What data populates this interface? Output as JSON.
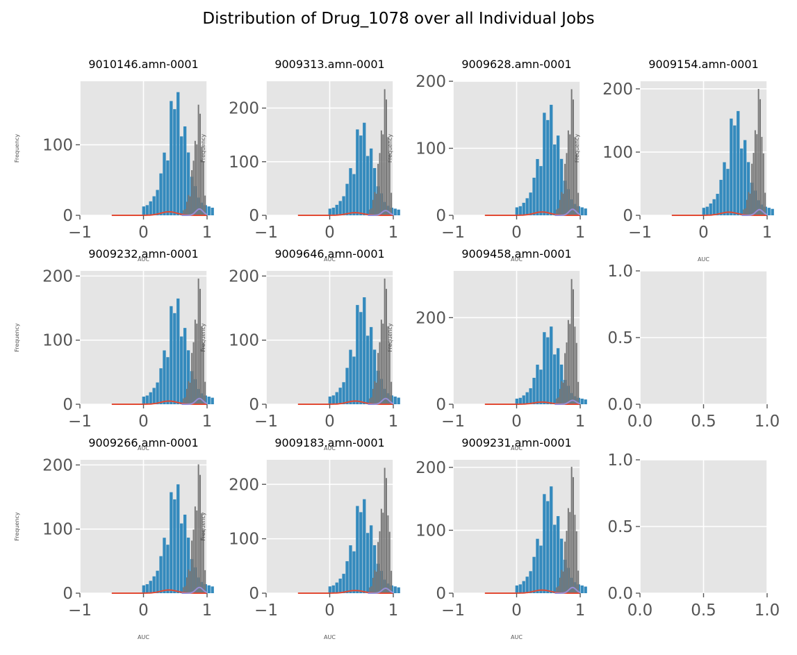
{
  "figure": {
    "title": "Distribution of Drug_1078 over all Individual Jobs"
  },
  "colors": {
    "background": "#ffffff",
    "axes_face": "#e5e5e5",
    "grid": "#ffffff",
    "tick_text": "#555555",
    "hist_primary": "#348abd",
    "hist_secondary": "#777777",
    "line_red": "#e24a33",
    "line_purple": "#988ed5"
  },
  "chart_data": [
    {
      "type": "bar",
      "title": "9010146.amn-0001",
      "xlabel": "AUC",
      "ylabel": "Frequency",
      "xlim": [
        -1,
        1
      ],
      "ylim": [
        0,
        190
      ],
      "yticks": [
        0,
        100
      ],
      "xticks": [
        -1,
        0,
        1
      ],
      "peaks": {
        "primary": 180,
        "secondary": 160
      }
    },
    {
      "type": "bar",
      "title": "9009313.amn-0001",
      "xlabel": "AUC",
      "ylabel": "Frequency",
      "xlim": [
        -1,
        1
      ],
      "ylim": [
        0,
        250
      ],
      "yticks": [
        0,
        100,
        200
      ],
      "xticks": [
        -1,
        0,
        1
      ],
      "peaks": {
        "primary": 178,
        "secondary": 240
      }
    },
    {
      "type": "bar",
      "title": "9009628.amn-0001",
      "xlabel": "AUC",
      "ylabel": "Frequency",
      "xlim": [
        -1,
        1
      ],
      "ylim": [
        0,
        200
      ],
      "yticks": [
        0,
        100,
        200
      ],
      "xticks": [
        -1,
        0,
        1
      ],
      "peaks": {
        "primary": 170,
        "secondary": 192
      }
    },
    {
      "type": "bar",
      "title": "9009154.amn-0001",
      "xlabel": "AUC",
      "ylabel": "Frequency",
      "xlim": [
        -1,
        1
      ],
      "ylim": [
        0,
        212
      ],
      "yticks": [
        0,
        100,
        200
      ],
      "xticks": [
        -1,
        0,
        1
      ],
      "peaks": {
        "primary": 170,
        "secondary": 204
      }
    },
    {
      "type": "bar",
      "title": "9009232.amn-0001",
      "xlabel": "AUC",
      "ylabel": "Frequency",
      "xlim": [
        -1,
        1
      ],
      "ylim": [
        0,
        208
      ],
      "yticks": [
        0,
        100,
        200
      ],
      "xticks": [
        -1,
        0,
        1
      ],
      "peaks": {
        "primary": 170,
        "secondary": 200
      }
    },
    {
      "type": "bar",
      "title": "9009646.amn-0001",
      "xlabel": "AUC",
      "ylabel": "Frequency",
      "xlim": [
        -1,
        1
      ],
      "ylim": [
        0,
        208
      ],
      "yticks": [
        0,
        100,
        200
      ],
      "xticks": [
        -1,
        0,
        1
      ],
      "peaks": {
        "primary": 172,
        "secondary": 200
      }
    },
    {
      "type": "bar",
      "title": "9009458.amn-0001",
      "xlabel": "AUC",
      "ylabel": "Frequency",
      "xlim": [
        -1,
        1
      ],
      "ylim": [
        0,
        308
      ],
      "yticks": [
        0,
        200
      ],
      "xticks": [
        -1,
        0,
        1
      ],
      "peaks": {
        "primary": 185,
        "secondary": 295
      }
    },
    {
      "type": "empty",
      "xlim": [
        0,
        1
      ],
      "ylim": [
        0,
        1
      ],
      "yticks": [
        "0.0",
        "0.5",
        "1.0"
      ],
      "xticks": [
        "0.0",
        "0.5",
        "1.0"
      ]
    },
    {
      "type": "bar",
      "title": "9009266.amn-0001",
      "xlabel": "AUC",
      "ylabel": "Frequency",
      "xlim": [
        -1,
        1
      ],
      "ylim": [
        0,
        208
      ],
      "yticks": [
        0,
        100,
        200
      ],
      "xticks": [
        -1,
        0,
        1
      ],
      "peaks": {
        "primary": 175,
        "secondary": 205
      }
    },
    {
      "type": "bar",
      "title": "9009183.amn-0001",
      "xlabel": "AUC",
      "ylabel": "Frequency",
      "xlim": [
        -1,
        1
      ],
      "ylim": [
        0,
        245
      ],
      "yticks": [
        0,
        100,
        200
      ],
      "xticks": [
        -1,
        0,
        1
      ],
      "peaks": {
        "primary": 178,
        "secondary": 235
      }
    },
    {
      "type": "bar",
      "title": "9009231.amn-0001",
      "xlabel": "AUC",
      "ylabel": "",
      "xlim": [
        -1,
        1
      ],
      "ylim": [
        0,
        212
      ],
      "yticks": [
        0,
        100,
        200
      ],
      "xticks": [
        -1,
        0,
        1
      ],
      "peaks": {
        "primary": 175,
        "secondary": 205
      }
    },
    {
      "type": "empty",
      "xlim": [
        0,
        1
      ],
      "ylim": [
        0,
        1
      ],
      "yticks": [
        "0.0",
        "0.5",
        "1.0"
      ],
      "xticks": [
        "0.0",
        "0.5",
        "1.0"
      ]
    }
  ]
}
